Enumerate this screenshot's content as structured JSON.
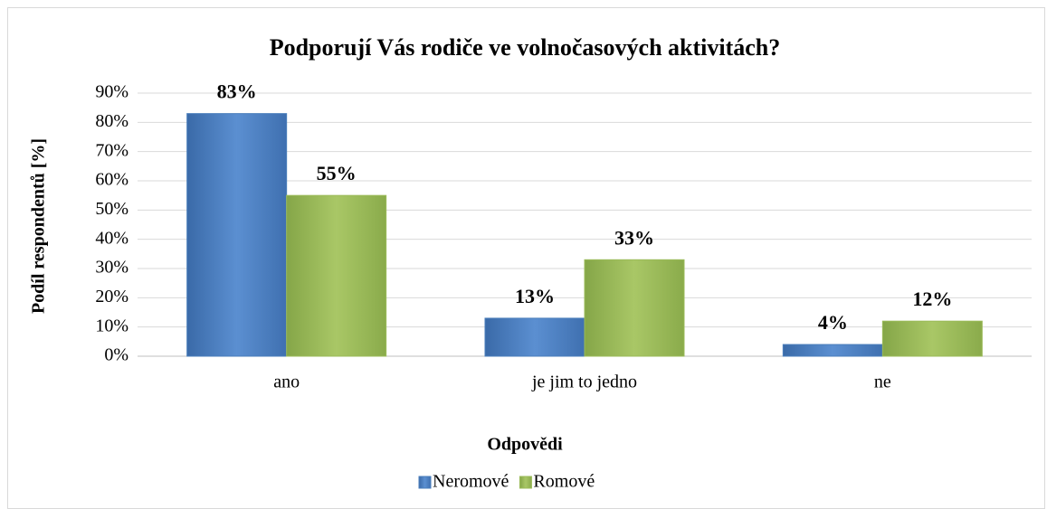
{
  "chart_data": {
    "type": "bar",
    "title": "Podporují Vás rodiče ve volnočasových aktivitách?",
    "x_label": "Odpovědi",
    "y_label": "Podíl respondentů [%]",
    "categories": [
      "ano",
      "je jim to jedno",
      "ne"
    ],
    "series": [
      {
        "name": "Neromové",
        "color": "#4a7ebb",
        "values": [
          83,
          13,
          4
        ],
        "value_labels": [
          "83%",
          "13%",
          "4%"
        ]
      },
      {
        "name": "Romové",
        "color": "#9bbb59",
        "values": [
          55,
          33,
          12
        ],
        "value_labels": [
          "55%",
          "33%",
          "12%"
        ]
      }
    ],
    "ylim": [
      0,
      90
    ],
    "yticks": [
      {
        "value": 0,
        "label": "0%"
      },
      {
        "value": 10,
        "label": "10%"
      },
      {
        "value": 20,
        "label": "20%"
      },
      {
        "value": 30,
        "label": "30%"
      },
      {
        "value": 40,
        "label": "40%"
      },
      {
        "value": 50,
        "label": "50%"
      },
      {
        "value": 60,
        "label": "60%"
      },
      {
        "value": 70,
        "label": "70%"
      },
      {
        "value": 80,
        "label": "80%"
      },
      {
        "value": 90,
        "label": "90%"
      }
    ],
    "grid": true,
    "legend": "bottom"
  }
}
